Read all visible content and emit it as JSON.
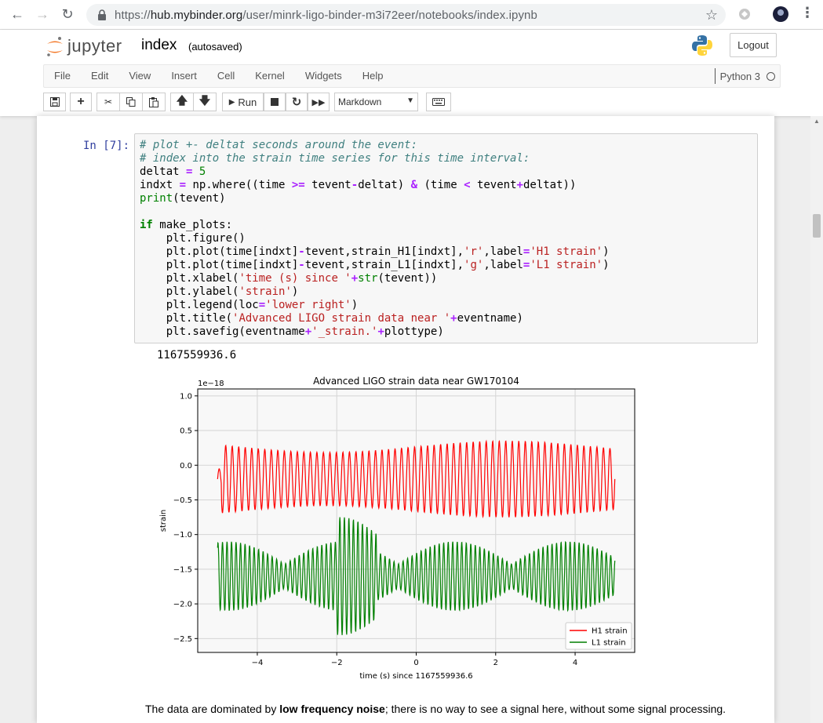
{
  "browser": {
    "url_prefix": "https://",
    "url_host": "hub.mybinder.org",
    "url_path": "/user/minrk-ligo-binder-m3i72eer/notebooks/index.ipynb"
  },
  "header": {
    "logo_text": "jupyter",
    "notebook_name": "index",
    "save_status": "(autosaved)",
    "logout_label": "Logout"
  },
  "menu": {
    "items": [
      "File",
      "Edit",
      "View",
      "Insert",
      "Cell",
      "Kernel",
      "Widgets",
      "Help"
    ],
    "kernel_name": "Python 3"
  },
  "toolbar": {
    "run_label": "Run",
    "cell_type": "Markdown"
  },
  "cell": {
    "prompt": "In [7]:",
    "output": "1167559936.6"
  },
  "markdown": {
    "before": "The data are dominated by ",
    "bold": "low frequency noise",
    "after": "; there is no way to see a signal here, without some signal processing."
  },
  "colors": {
    "h1": "#ff0000",
    "l1": "#007f00",
    "prompt": "#303f9f"
  },
  "chart_data": {
    "type": "line",
    "title": "Advanced LIGO strain data near GW170104",
    "xlabel": "time (s) since 1167559936.6",
    "ylabel": "strain",
    "y_offset_label": "1e−18",
    "xlim": [
      -5.5,
      5.5
    ],
    "ylim": [
      -2.7,
      1.1
    ],
    "x_ticks": [
      -4,
      -2,
      0,
      2,
      4
    ],
    "x_tick_labels": [
      "−4",
      "−2",
      "0",
      "2",
      "4"
    ],
    "y_ticks": [
      1.0,
      0.5,
      0.0,
      -0.5,
      -1.0,
      -1.5,
      -2.0,
      -2.5
    ],
    "y_tick_labels": [
      "1.0",
      "0.5",
      "0.0",
      "−0.5",
      "−1.0",
      "−1.5",
      "−2.0",
      "−2.5"
    ],
    "grid": true,
    "legend_position": "lower right",
    "series": [
      {
        "name": "H1 strain",
        "color": "#ff0000",
        "center": -0.2,
        "amplitude": 0.55,
        "cycles": 61
      },
      {
        "name": "L1 strain",
        "color": "#007f00",
        "center": -1.6,
        "amplitude": 0.5,
        "cycles": 88
      }
    ]
  }
}
